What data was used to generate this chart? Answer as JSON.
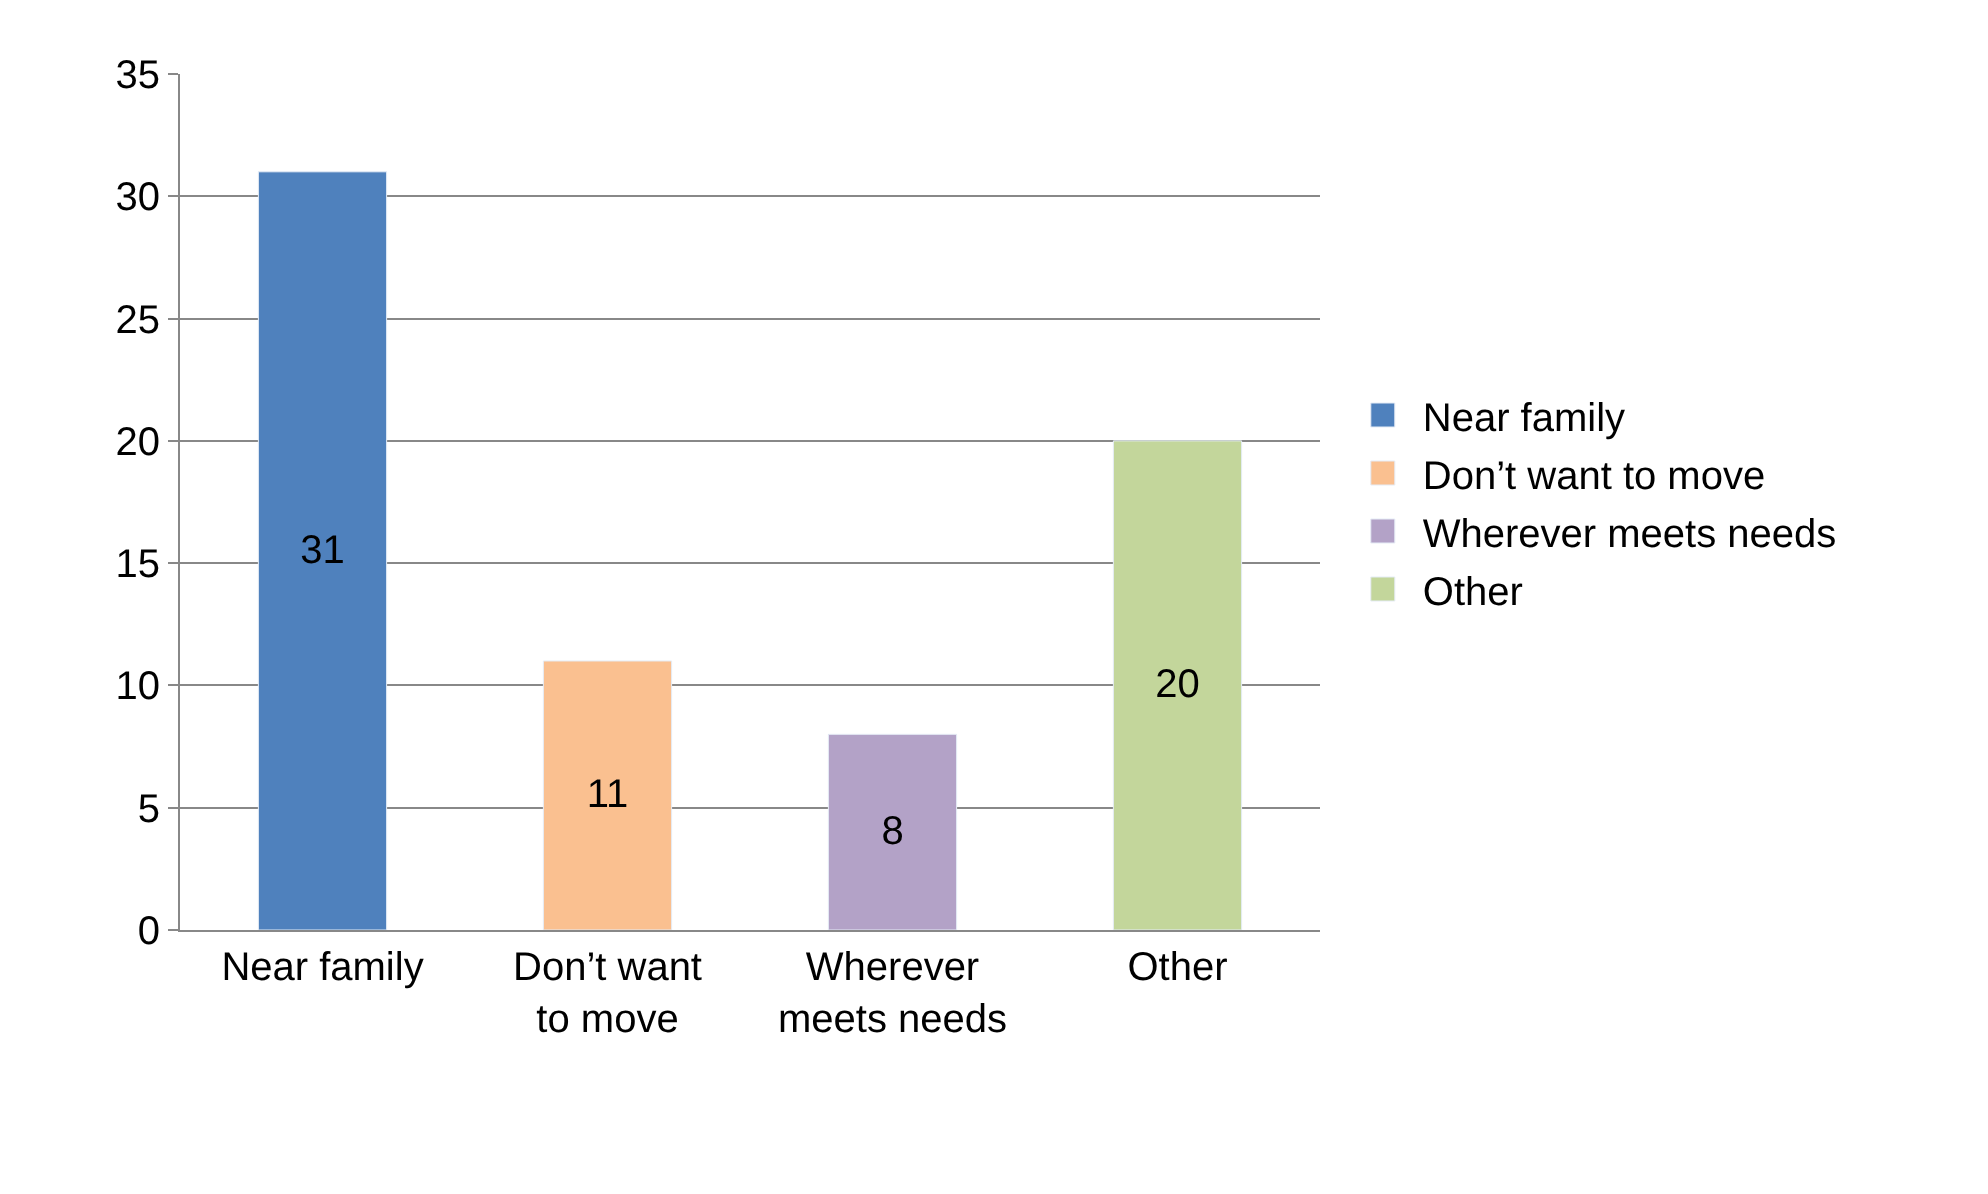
{
  "chart_data": {
    "type": "bar",
    "categories": [
      "Near family",
      "Don’t want to move",
      "Wherever meets needs",
      "Other"
    ],
    "series": [
      {
        "name": "Near family",
        "color": "#4f81bd",
        "values": [
          31,
          null,
          null,
          null
        ]
      },
      {
        "name": "Don’t want to move",
        "color": "#fac090",
        "values": [
          null,
          11,
          null,
          null
        ]
      },
      {
        "name": "Wherever meets needs",
        "color": "#b3a2c7",
        "values": [
          null,
          null,
          8,
          null
        ]
      },
      {
        "name": "Other",
        "color": "#c3d69b",
        "values": [
          null,
          null,
          null,
          20
        ]
      }
    ],
    "ylim": [
      0,
      35
    ],
    "yticks": [
      0,
      5,
      10,
      15,
      20,
      25,
      30,
      35
    ],
    "grid": "y",
    "legend": "right",
    "data_labels": true
  }
}
